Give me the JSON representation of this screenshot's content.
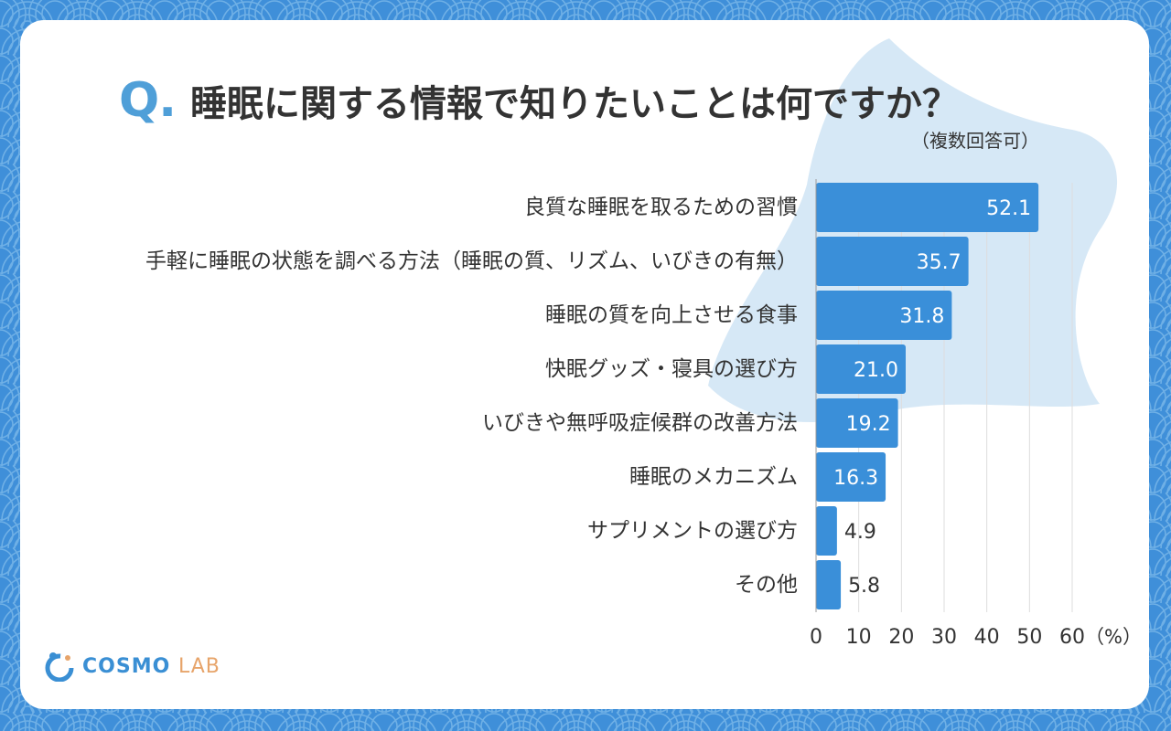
{
  "header": {
    "q_mark": "Q.",
    "title": "睡眠に関する情報で知りたいことは何ですか？",
    "note": "（複数回答可）"
  },
  "chart_data": {
    "type": "bar",
    "orientation": "horizontal",
    "categories": [
      "良質な睡眠を取るための習慣",
      "手軽に睡眠の状態を調べる方法（睡眠の質、リズム、いびきの有無）",
      "睡眠の質を向上させる食事",
      "快眠グッズ・寝具の選び方",
      "いびきや無呼吸症候群の改善方法",
      "睡眠のメカニズム",
      "サプリメントの選び方",
      "その他"
    ],
    "values": [
      52.1,
      35.7,
      31.8,
      21.0,
      19.2,
      16.3,
      4.9,
      5.8
    ],
    "value_labels": [
      "52.1",
      "35.7",
      "31.8",
      "21.0",
      "19.2",
      "16.3",
      "4.9",
      "5.8"
    ],
    "title": "睡眠に関する情報で知りたいことは何ですか？",
    "xlabel": "",
    "ylabel": "",
    "xlim": [
      0,
      60
    ],
    "x_ticks": [
      "0",
      "10",
      "20",
      "30",
      "40",
      "50",
      "60"
    ],
    "x_unit": "（%）",
    "grid": true,
    "bar_color": "#3a8fd9"
  },
  "logo": {
    "main": "COSMO",
    "sub": "LAB"
  },
  "colors": {
    "background": "#3f8fd9",
    "accent": "#4f9fd8",
    "logo_orange": "#e7a46a"
  }
}
